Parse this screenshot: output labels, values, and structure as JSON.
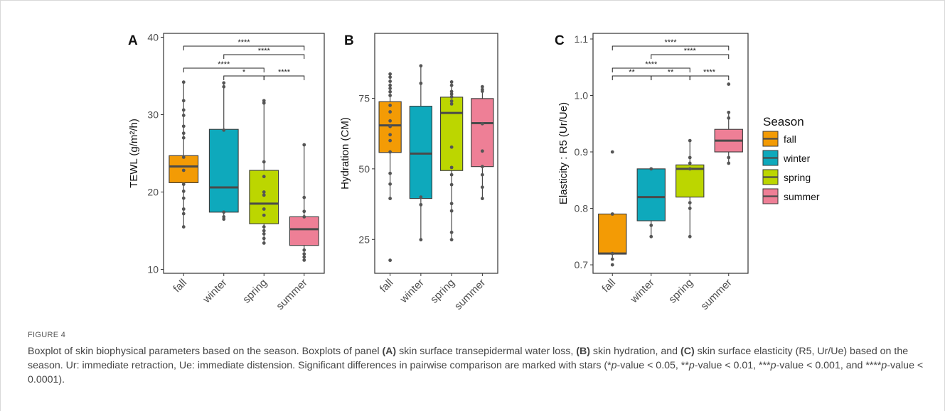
{
  "colors": {
    "fall": "#F39B05",
    "winter": "#0EA9BC",
    "spring": "#BCD600",
    "summer": "#EE7F96",
    "median": "#4a4a4a",
    "outline": "#3a3a3a",
    "point": "#555555"
  },
  "chart_data": [
    {
      "type": "boxplot",
      "panel": "A",
      "ylabel": "TEWL (g/m²/h)",
      "categories": [
        "fall",
        "winter",
        "spring",
        "summer"
      ],
      "ylim": [
        9.5,
        40.5
      ],
      "yticks": [
        10,
        20,
        30,
        40
      ],
      "boxes": [
        {
          "category": "fall",
          "whisker_low": 15.5,
          "q1": 21.2,
          "median": 23.3,
          "q3": 24.7,
          "whisker_high": 34.2,
          "points": [
            34.2,
            31.8,
            30.6,
            29.9,
            28.5,
            27.6,
            27.0,
            24.5,
            22.8,
            21.0,
            20.1,
            19.2,
            17.8,
            17.2,
            15.5
          ]
        },
        {
          "category": "winter",
          "whisker_low": 16.5,
          "q1": 17.4,
          "median": 20.6,
          "q3": 28.1,
          "whisker_high": 34.1,
          "points": [
            34.1,
            33.6,
            28.0,
            17.4,
            16.8,
            16.5
          ]
        },
        {
          "category": "spring",
          "whisker_low": 13.4,
          "q1": 15.9,
          "median": 18.5,
          "q3": 22.8,
          "whisker_high": 31.8,
          "points": [
            31.8,
            31.5,
            23.9,
            22.0,
            20.0,
            19.6,
            17.8,
            17.0,
            15.5,
            15.0,
            14.6,
            14.0,
            13.4
          ]
        },
        {
          "category": "summer",
          "whisker_low": 11.2,
          "q1": 13.1,
          "median": 15.2,
          "q3": 16.8,
          "whisker_high": 26.1,
          "points": [
            26.1,
            19.3,
            17.5,
            16.8,
            12.5,
            12.0,
            11.6,
            11.2
          ]
        }
      ],
      "significance": [
        {
          "from": "fall",
          "to": "summer",
          "label": "****"
        },
        {
          "from": "winter",
          "to": "summer",
          "label": "****"
        },
        {
          "from": "fall",
          "to": "spring",
          "label": "****"
        },
        {
          "from": "winter",
          "to": "spring",
          "label": "*"
        },
        {
          "from": "spring",
          "to": "summer",
          "label": "****"
        }
      ]
    },
    {
      "type": "boxplot",
      "panel": "B",
      "ylabel": "Hydration (CM)",
      "categories": [
        "fall",
        "winter",
        "spring",
        "summer"
      ],
      "ylim": [
        13,
        98
      ],
      "yticks": [
        25,
        50,
        75
      ],
      "boxes": [
        {
          "category": "fall",
          "whisker_low": 39.5,
          "q1": 55.8,
          "median": 65.4,
          "q3": 73.8,
          "whisker_high": 83.6,
          "points": [
            83.6,
            82.5,
            81.0,
            79.6,
            78.5,
            77.3,
            76.0,
            72.5,
            70.2,
            67.0,
            65.0,
            62.1,
            60.0,
            56.0,
            48.4,
            44.6,
            39.5,
            17.6
          ]
        },
        {
          "category": "winter",
          "whisker_low": 24.9,
          "q1": 39.5,
          "median": 55.4,
          "q3": 72.2,
          "whisker_high": 86.5,
          "points": [
            86.5,
            80.3,
            40.0,
            37.3,
            24.9
          ]
        },
        {
          "category": "spring",
          "whisker_low": 24.9,
          "q1": 49.4,
          "median": 69.8,
          "q3": 75.4,
          "whisker_high": 80.8,
          "points": [
            80.8,
            79.6,
            77.4,
            76.5,
            75.5,
            74.0,
            73.0,
            57.7,
            50.5,
            47.9,
            44.4,
            37.7,
            35.1,
            27.5,
            24.9
          ]
        },
        {
          "category": "summer",
          "whisker_low": 39.5,
          "q1": 50.8,
          "median": 66.2,
          "q3": 74.9,
          "whisker_high": 79.1,
          "points": [
            79.1,
            78.1,
            77.5,
            66.0,
            56.3,
            50.8,
            47.9,
            43.5,
            39.5
          ]
        }
      ]
    },
    {
      "type": "boxplot",
      "panel": "C",
      "ylabel": "Elasticity : R5 (Ur/Ue)",
      "categories": [
        "fall",
        "winter",
        "spring",
        "summer"
      ],
      "ylim": [
        0.685,
        1.11
      ],
      "yticks": [
        0.7,
        0.8,
        0.9,
        1.0,
        1.1
      ],
      "yticklabels": [
        "0.7",
        "0.8",
        "0.9",
        "1.0",
        "1.1"
      ],
      "boxes": [
        {
          "category": "fall",
          "whisker_low": 0.71,
          "q1": 0.719,
          "median": 0.72,
          "q3": 0.79,
          "whisker_high": 0.79,
          "points": [
            0.9,
            0.79,
            0.72,
            0.71,
            0.7
          ]
        },
        {
          "category": "winter",
          "whisker_low": 0.75,
          "q1": 0.778,
          "median": 0.82,
          "q3": 0.87,
          "whisker_high": 0.87,
          "points": [
            0.87,
            0.77,
            0.75
          ]
        },
        {
          "category": "spring",
          "whisker_low": 0.75,
          "q1": 0.82,
          "median": 0.87,
          "q3": 0.877,
          "whisker_high": 0.92,
          "points": [
            0.92,
            0.89,
            0.88,
            0.87,
            0.81,
            0.8,
            0.75
          ]
        },
        {
          "category": "summer",
          "whisker_low": 0.88,
          "q1": 0.9,
          "median": 0.92,
          "q3": 0.94,
          "whisker_high": 0.97,
          "points": [
            1.02,
            0.97,
            0.96,
            0.89,
            0.88
          ]
        }
      ],
      "significance": [
        {
          "from": "fall",
          "to": "summer",
          "label": "****"
        },
        {
          "from": "winter",
          "to": "summer",
          "label": "****"
        },
        {
          "from": "fall",
          "to": "spring",
          "label": "****"
        },
        {
          "from": "fall",
          "to": "winter",
          "label": "**"
        },
        {
          "from": "winter",
          "to": "spring",
          "label": "**"
        },
        {
          "from": "spring",
          "to": "summer",
          "label": "****"
        }
      ]
    }
  ],
  "legend": {
    "title": "Season",
    "items": [
      "fall",
      "winter",
      "spring",
      "summer"
    ]
  },
  "caption": {
    "figure_label": "FIGURE 4",
    "s1": "Boxplot of skin biophysical parameters based on the season. Boxplots of panel ",
    "panel_a": "(A)",
    "s2": " skin surface transepidermal water loss, ",
    "panel_b": "(B)",
    "s3": " skin hydration, and ",
    "panel_c": "(C)",
    "s4": " skin surface elasticity (R5, Ur/Ue) based on the season. Ur: immediate retraction, Ue: immediate distension. Significant differences in pairwise comparison are marked with stars (*",
    "p1": "p",
    "s5": "-value < 0.05, **",
    "p2": "p",
    "s6": "-value < 0.01, ***",
    "p3": "p",
    "s7": "-value < 0.001, and ****",
    "p4": "p",
    "s8": "-value < 0.0001)."
  }
}
